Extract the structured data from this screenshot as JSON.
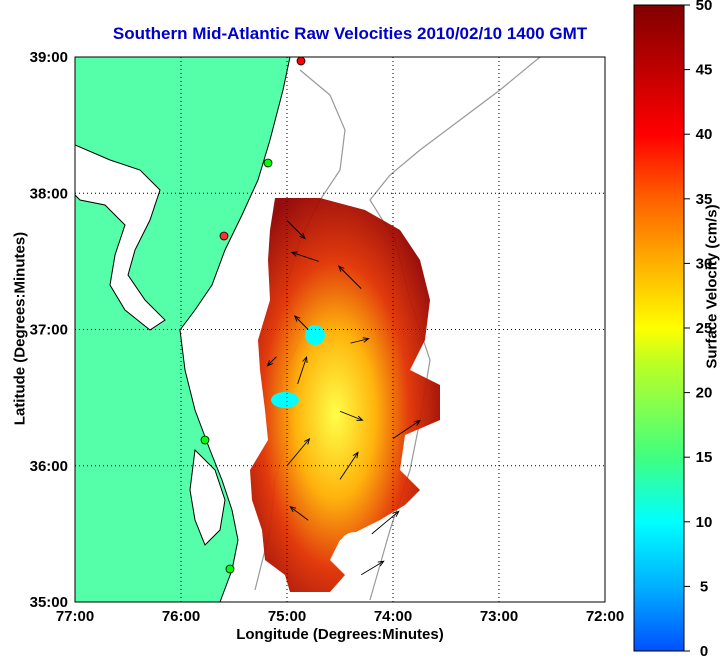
{
  "chart_data": {
    "type": "heatmap",
    "title": "Southern Mid-Atlantic Raw Velocities 2010/02/10 1400 GMT",
    "xlabel": "Longitude (Degrees:Minutes)",
    "ylabel": "Latitude (Degrees:Minutes)",
    "colorbar_label": "Surface Velocity (cm/s)",
    "x_ticks": [
      "77:00",
      "76:00",
      "75:00",
      "74:00",
      "73:00",
      "72:00"
    ],
    "y_ticks": [
      "39:00",
      "38:00",
      "37:00",
      "36:00",
      "35:00"
    ],
    "colorbar_ticks": [
      "50",
      "45",
      "40",
      "35",
      "30",
      "25",
      "20",
      "15",
      "10",
      "5",
      "0"
    ],
    "xlim": [
      -77,
      -72
    ],
    "ylim": [
      35,
      39
    ],
    "clim": [
      0,
      50
    ],
    "grid": true,
    "colormap": [
      "#0050ff",
      "#00b0ff",
      "#00ffff",
      "#40ff80",
      "#c0ff20",
      "#ffff00",
      "#ffb000",
      "#ff6000",
      "#ff0000",
      "#c00000",
      "#800000"
    ],
    "land_color": "#55ffaa",
    "vectors": [
      {
        "lon": -75.0,
        "lat": 37.8,
        "u": 20,
        "v": -20,
        "speed": 45
      },
      {
        "lon": -74.7,
        "lat": 37.5,
        "u": -30,
        "v": 10,
        "speed": 42
      },
      {
        "lon": -74.3,
        "lat": 37.3,
        "u": -25,
        "v": 25,
        "speed": 38
      },
      {
        "lon": -74.8,
        "lat": 37.0,
        "u": -15,
        "v": 15,
        "speed": 28
      },
      {
        "lon": -74.4,
        "lat": 36.9,
        "u": 20,
        "v": 5,
        "speed": 22
      },
      {
        "lon": -75.1,
        "lat": 36.8,
        "u": -10,
        "v": -10,
        "speed": 24
      },
      {
        "lon": -74.9,
        "lat": 36.6,
        "u": 10,
        "v": 30,
        "speed": 12
      },
      {
        "lon": -74.5,
        "lat": 36.4,
        "u": 25,
        "v": -10,
        "speed": 30
      },
      {
        "lon": -74.0,
        "lat": 36.2,
        "u": 30,
        "v": 20,
        "speed": 44
      },
      {
        "lon": -75.0,
        "lat": 36.0,
        "u": 25,
        "v": 30,
        "speed": 40
      },
      {
        "lon": -74.5,
        "lat": 35.9,
        "u": 20,
        "v": 30,
        "speed": 46
      },
      {
        "lon": -74.8,
        "lat": 35.6,
        "u": -20,
        "v": 15,
        "speed": 30
      },
      {
        "lon": -74.2,
        "lat": 35.5,
        "u": 30,
        "v": 25,
        "speed": 45
      },
      {
        "lon": -74.3,
        "lat": 35.2,
        "u": 25,
        "v": 15,
        "speed": 48
      }
    ]
  }
}
